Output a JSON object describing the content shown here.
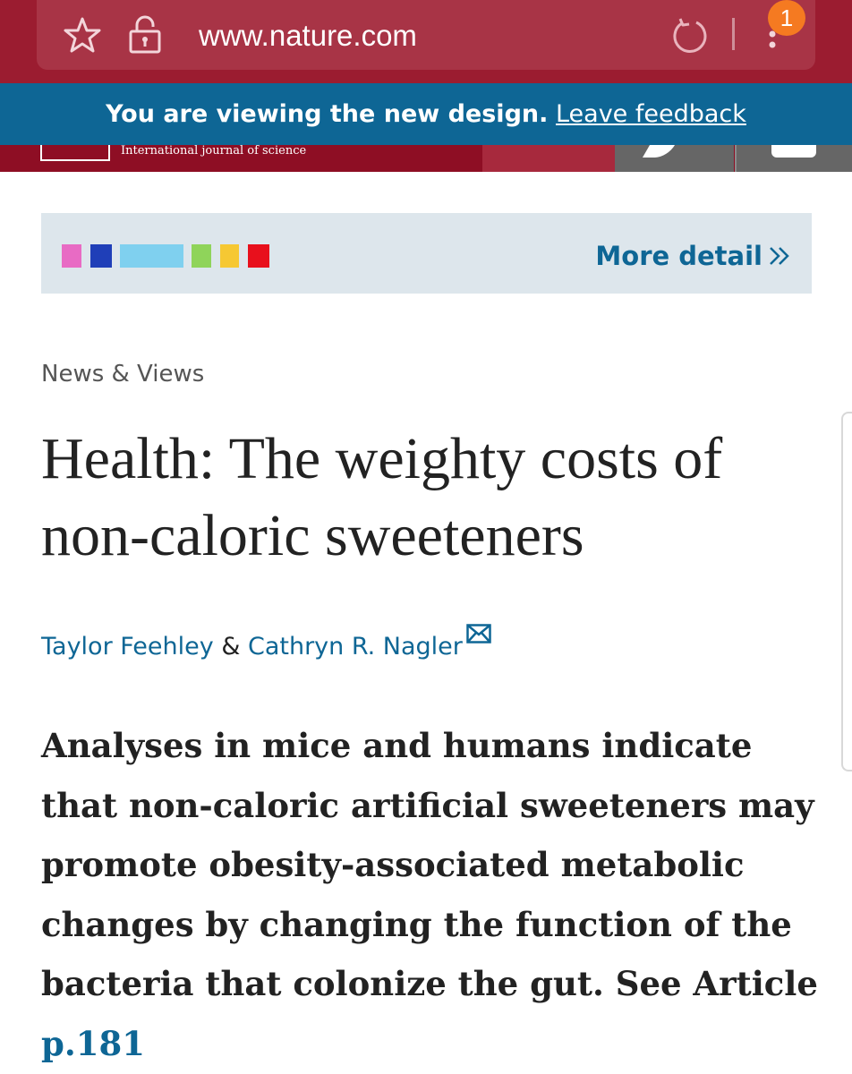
{
  "browser": {
    "url": "www.nature.com",
    "notification_count": "1",
    "icons": [
      "star-icon",
      "lock-icon",
      "reload-icon",
      "more-menu-icon"
    ],
    "chrome_color": "#9b1c30"
  },
  "banner": {
    "text": "You are viewing the new design.",
    "link_label": "Leave feedback",
    "color": "#0e6695"
  },
  "site_header": {
    "tagline": "International journal of science",
    "color": "#8e0e24"
  },
  "issue_strip": {
    "more_detail_label": "More detail",
    "thumb_colors": [
      "#e86bc4",
      "#1f3fb8",
      "#7fd0ef",
      "#8fd45a",
      "#f6c833",
      "#e8101c"
    ]
  },
  "article": {
    "type": "News & Views",
    "title": "Health: The weighty costs of non-caloric sweeteners",
    "authors": [
      "Taylor Feehley",
      "Cathryn R. Nagler"
    ],
    "author_separator": " & ",
    "standfirst": "Analyses in mice and humans indicate that non-caloric artificial sweeteners may promote obesity-associated metabolic changes by changing the function of the bacteria that colonize the gut. See Article",
    "page_ref": "p.181",
    "link_color": "#0e6695"
  }
}
